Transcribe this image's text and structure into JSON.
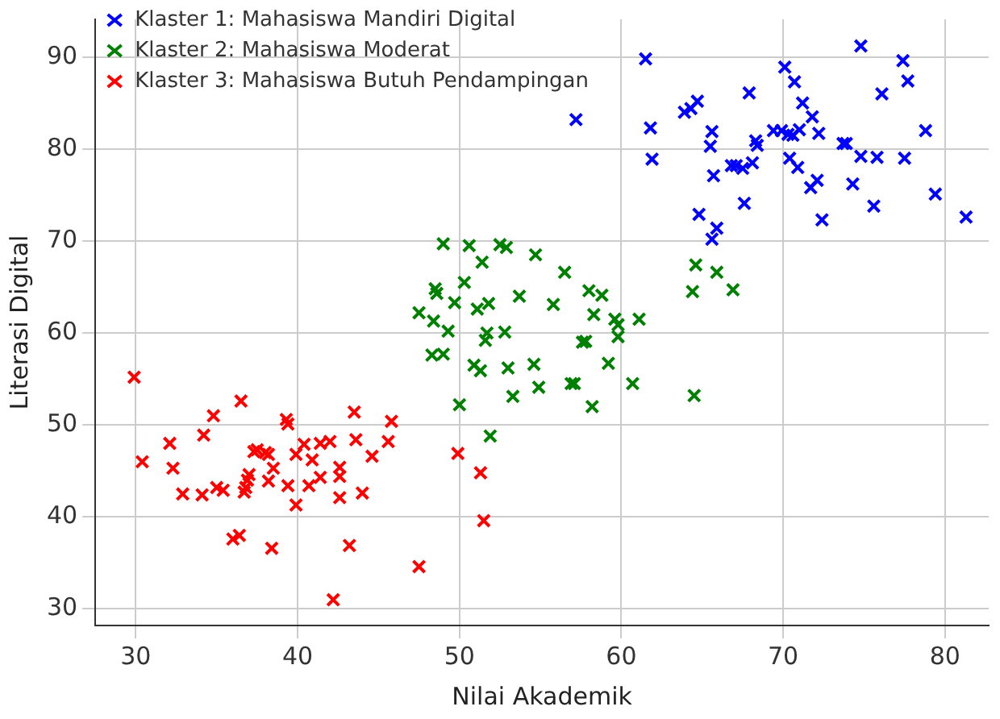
{
  "chart_data": {
    "type": "scatter",
    "xlabel": "Nilai Akademik",
    "ylabel": "Literasi Digital",
    "xlim": [
      27.5,
      82.7
    ],
    "ylim": [
      28.2,
      94.1
    ],
    "xticks": [
      30,
      40,
      50,
      60,
      70,
      80
    ],
    "yticks": [
      30,
      40,
      50,
      60,
      70,
      80,
      90
    ],
    "grid": true,
    "legend": "top left",
    "marker": "cross",
    "series": [
      {
        "name": "Klaster 1: Mahasiswa Mandiri Digital",
        "color": "#0000ff",
        "x": [
          57.2,
          61.5,
          61.8,
          61.9,
          63.9,
          64.3,
          64.7,
          64.8,
          65.5,
          65.6,
          65.7,
          65.6,
          65.9,
          66.8,
          67.1,
          67.5,
          67.6,
          67.9,
          68.1,
          68.3,
          68.4,
          69.4,
          69.9,
          70.1,
          70.3,
          70.4,
          70.7,
          71.0,
          70.6,
          70.9,
          71.2,
          71.7,
          71.8,
          72.1,
          72.2,
          72.4,
          73.7,
          73.9,
          74.3,
          74.8,
          74.8,
          75.6,
          75.8,
          76.1,
          77.4,
          77.5,
          77.7,
          78.8,
          79.4,
          81.3
        ],
        "values": [
          83.2,
          89.8,
          82.3,
          78.9,
          84.0,
          84.4,
          85.2,
          72.9,
          80.3,
          81.9,
          77.1,
          70.2,
          71.4,
          78.2,
          78.2,
          77.9,
          74.1,
          86.1,
          78.5,
          80.9,
          80.4,
          82.0,
          82.0,
          88.9,
          81.6,
          79.0,
          87.3,
          82.1,
          81.5,
          78.0,
          85.0,
          75.8,
          83.5,
          76.6,
          81.7,
          72.3,
          80.6,
          80.6,
          76.2,
          79.2,
          91.2,
          73.8,
          79.1,
          86.0,
          89.6,
          79.0,
          87.4,
          82.0,
          75.1,
          72.6
        ]
      },
      {
        "name": "Klaster 2: Mahasiswa Moderat",
        "color": "#008000",
        "x": [
          47.5,
          48.3,
          48.4,
          48.5,
          48.6,
          49.0,
          49.0,
          49.3,
          49.7,
          50.0,
          50.3,
          50.6,
          50.9,
          51.1,
          51.3,
          51.4,
          51.7,
          51.8,
          51.6,
          51.9,
          52.5,
          52.9,
          52.8,
          53.0,
          53.3,
          53.7,
          54.6,
          54.7,
          54.9,
          55.8,
          56.5,
          56.9,
          57.1,
          57.6,
          57.8,
          58.0,
          58.2,
          58.3,
          58.8,
          59.2,
          59.6,
          59.8,
          59.8,
          60.7,
          61.1,
          64.4,
          64.5,
          64.6,
          65.9,
          66.9
        ],
        "values": [
          62.2,
          57.6,
          61.3,
          64.8,
          64.3,
          69.7,
          57.7,
          60.2,
          63.3,
          52.2,
          65.5,
          69.5,
          56.5,
          62.6,
          55.9,
          67.7,
          60.0,
          63.2,
          59.2,
          48.8,
          69.6,
          69.3,
          60.1,
          56.2,
          53.1,
          64.0,
          56.6,
          68.5,
          54.1,
          63.1,
          66.6,
          54.5,
          54.5,
          59.0,
          59.1,
          64.6,
          52.0,
          62.0,
          64.1,
          56.7,
          61.5,
          60.9,
          59.6,
          54.5,
          61.5,
          64.5,
          53.2,
          67.4,
          66.6,
          64.7
        ]
      },
      {
        "name": "Klaster 3: Mahasiswa Butuh Pendampingan",
        "color": "#ff0000",
        "x": [
          29.9,
          30.4,
          32.1,
          32.3,
          32.9,
          34.1,
          34.2,
          34.8,
          35.0,
          35.4,
          36.0,
          36.4,
          36.5,
          36.7,
          36.8,
          36.9,
          37.0,
          37.3,
          37.5,
          38.0,
          38.2,
          38.2,
          38.5,
          38.4,
          39.3,
          39.4,
          39.4,
          39.9,
          39.9,
          40.4,
          40.7,
          40.9,
          41.4,
          41.4,
          42.0,
          42.2,
          42.6,
          42.6,
          42.6,
          43.2,
          43.5,
          43.6,
          44.0,
          44.6,
          45.6,
          45.8,
          47.5,
          49.9,
          51.3,
          51.5
        ],
        "values": [
          55.2,
          46.0,
          48.0,
          45.3,
          42.5,
          42.4,
          48.9,
          51.0,
          43.2,
          42.9,
          37.6,
          38.0,
          52.6,
          42.7,
          43.2,
          44.0,
          44.6,
          47.1,
          47.3,
          47.0,
          46.8,
          43.9,
          45.3,
          36.6,
          50.6,
          50.1,
          43.4,
          41.3,
          46.8,
          47.9,
          43.4,
          46.2,
          48.0,
          44.3,
          48.2,
          31.0,
          45.4,
          44.4,
          42.1,
          36.9,
          51.4,
          48.4,
          42.6,
          46.6,
          48.2,
          50.4,
          34.6,
          46.9,
          44.8,
          39.6
        ]
      }
    ]
  }
}
